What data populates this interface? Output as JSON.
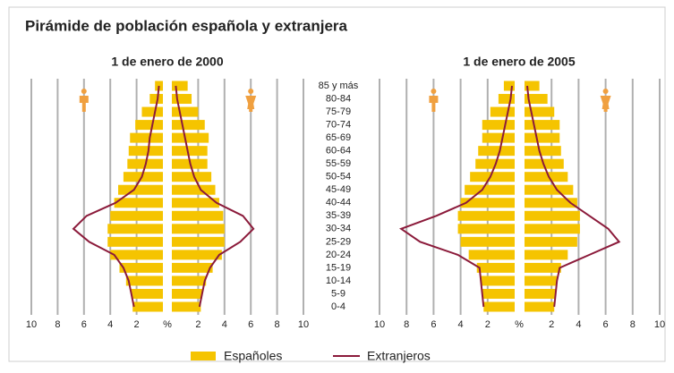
{
  "chart_data": {
    "type": "pyramid",
    "title": "Pirámide de población española y extranjera",
    "categories": [
      "0-4",
      "5-9",
      "10-14",
      "15-19",
      "20-24",
      "25-29",
      "30-34",
      "35-39",
      "40-44",
      "45-49",
      "50-54",
      "55-59",
      "60-64",
      "65-69",
      "70-74",
      "75-79",
      "80-84",
      "85 y más"
    ],
    "xlim": [
      0,
      10
    ],
    "xticks": [
      {
        "value": 0,
        "label": "%"
      },
      2,
      4,
      6,
      8,
      10
    ],
    "grid": true,
    "series": [
      {
        "name": "Españoles",
        "color": "#f5c400",
        "mark": "bar"
      },
      {
        "name": "Extranjeros",
        "color": "#8b1a3a",
        "mark": "line"
      }
    ],
    "panels": [
      {
        "title": "1 de enero de 2000",
        "bars": {
          "male": [
            2.3,
            2.4,
            2.8,
            3.3,
            4.0,
            4.2,
            4.2,
            4.0,
            3.7,
            3.4,
            3.0,
            2.7,
            2.6,
            2.5,
            2.1,
            1.6,
            1.0,
            0.6
          ],
          "female": [
            2.2,
            2.3,
            2.6,
            3.1,
            3.8,
            4.0,
            4.0,
            3.9,
            3.6,
            3.3,
            3.0,
            2.7,
            2.7,
            2.8,
            2.5,
            2.0,
            1.5,
            1.2
          ]
        },
        "lines": {
          "male": [
            2.2,
            2.4,
            2.6,
            3.0,
            3.7,
            5.6,
            6.8,
            5.8,
            3.6,
            2.2,
            1.6,
            1.3,
            1.1,
            1.0,
            0.8,
            0.6,
            0.4,
            0.3
          ],
          "female": [
            2.1,
            2.3,
            2.5,
            2.9,
            3.6,
            5.2,
            6.2,
            5.4,
            3.4,
            2.2,
            1.7,
            1.4,
            1.2,
            1.0,
            0.8,
            0.6,
            0.4,
            0.3
          ]
        }
      },
      {
        "title": "1 de enero de 2005",
        "bars": {
          "male": [
            2.3,
            2.4,
            2.5,
            2.8,
            3.4,
            4.0,
            4.2,
            4.2,
            4.0,
            3.7,
            3.3,
            2.9,
            2.7,
            2.4,
            2.4,
            1.8,
            1.2,
            0.8
          ],
          "female": [
            2.2,
            2.3,
            2.4,
            2.7,
            3.2,
            3.9,
            4.1,
            4.1,
            3.9,
            3.6,
            3.2,
            2.9,
            2.7,
            2.6,
            2.6,
            2.2,
            1.7,
            1.1
          ]
        },
        "lines": {
          "male": [
            2.3,
            2.4,
            2.5,
            2.6,
            4.2,
            7.0,
            8.4,
            5.8,
            3.6,
            2.4,
            1.8,
            1.4,
            1.1,
            0.9,
            0.7,
            0.5,
            0.3,
            0.2
          ],
          "female": [
            2.2,
            2.3,
            2.4,
            2.6,
            4.8,
            7.0,
            6.2,
            4.8,
            3.4,
            2.4,
            1.8,
            1.4,
            1.1,
            0.9,
            0.7,
            0.5,
            0.3,
            0.2
          ]
        }
      }
    ]
  }
}
